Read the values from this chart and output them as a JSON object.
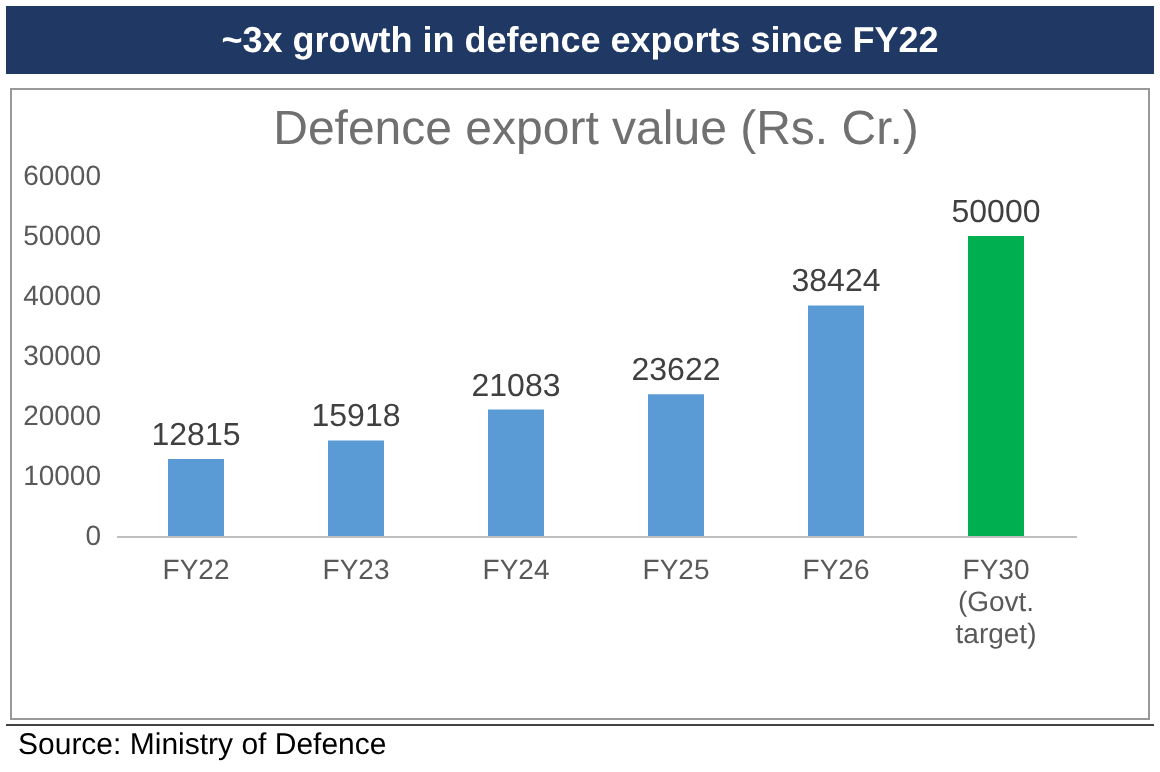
{
  "chart_data": {
    "type": "bar",
    "title": "~3x growth in defence exports since FY22",
    "subtitle": "Defence export value (Rs. Cr.)",
    "categories": [
      "FY22",
      "FY23",
      "FY24",
      "FY25",
      "FY26",
      "FY30 (Govt. target)"
    ],
    "values": [
      12815,
      15918,
      21083,
      23622,
      38424,
      50000
    ],
    "colors": [
      "#5b9bd5",
      "#5b9bd5",
      "#5b9bd5",
      "#5b9bd5",
      "#5b9bd5",
      "#00b050"
    ],
    "ylim": [
      0,
      60000
    ],
    "yticks": [
      0,
      10000,
      20000,
      30000,
      40000,
      50000,
      60000
    ],
    "grid": false,
    "data_labels": true,
    "annotations": [
      "Source: Ministry of Defence"
    ]
  }
}
